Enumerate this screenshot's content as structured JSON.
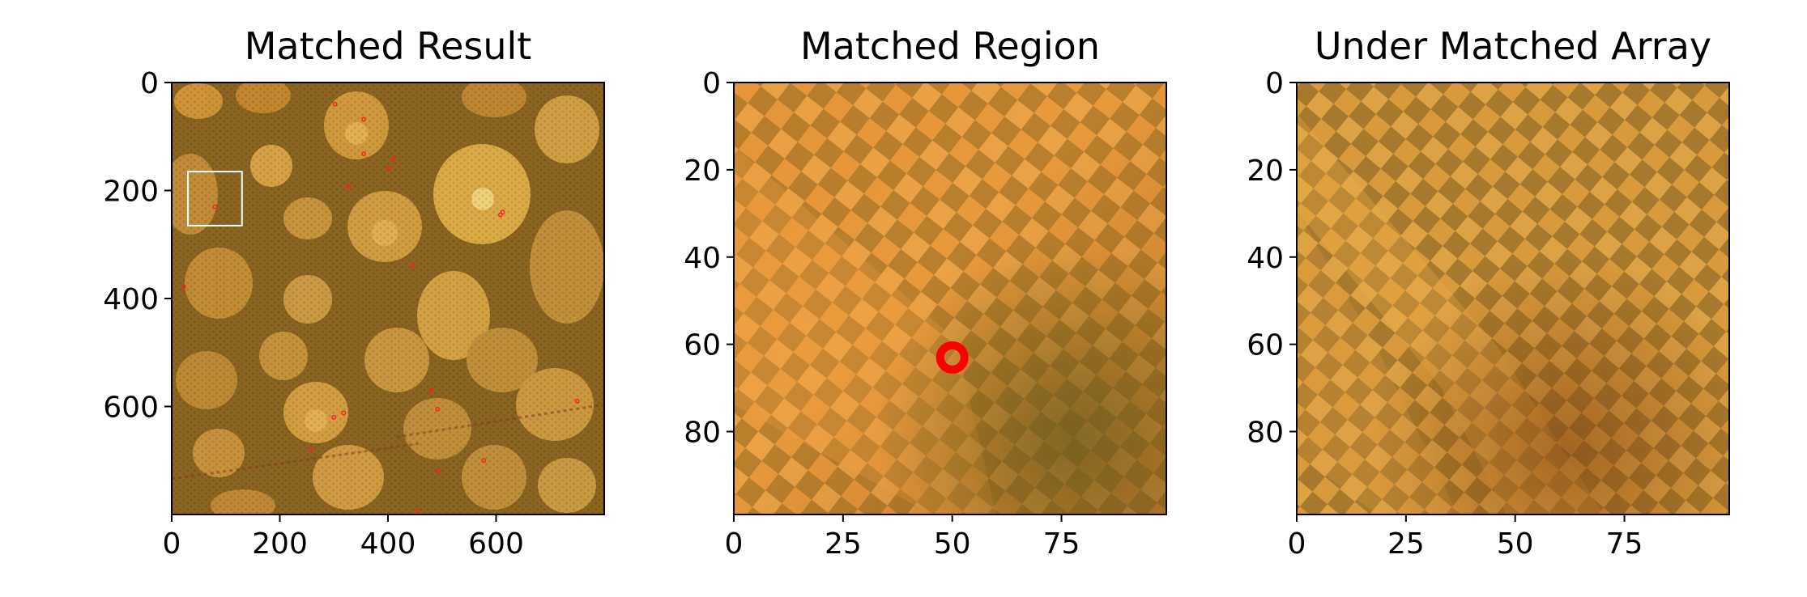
{
  "chart_data": [
    {
      "type": "heatmap",
      "title": "Matched Result",
      "xlim": [
        0,
        800
      ],
      "ylim": [
        800,
        0
      ],
      "xticks": [
        0,
        200,
        400,
        600
      ],
      "yticks": [
        0,
        200,
        400,
        600
      ],
      "xtick_labels": [
        "0",
        "200",
        "400",
        "600"
      ],
      "ytick_labels": [
        "0",
        "200",
        "400",
        "600"
      ],
      "annotations": {
        "match_box": {
          "x": [
            30,
            130
          ],
          "y": [
            165,
            265
          ],
          "color": "#ffffff"
        },
        "match_points": [
          [
            302,
            40
          ],
          [
            355,
            68
          ],
          [
            355,
            132
          ],
          [
            410,
            142
          ],
          [
            402,
            158
          ],
          [
            327,
            192
          ],
          [
            80,
            230
          ],
          [
            612,
            240
          ],
          [
            608,
            245
          ],
          [
            445,
            338
          ],
          [
            22,
            378
          ],
          [
            480,
            570
          ],
          [
            492,
            605
          ],
          [
            300,
            620
          ],
          [
            318,
            612
          ],
          [
            258,
            680
          ],
          [
            750,
            590
          ],
          [
            577,
            700
          ],
          [
            493,
            720
          ],
          [
            455,
            795
          ]
        ],
        "point_color": "#ff2020"
      }
    },
    {
      "type": "heatmap",
      "title": "Matched Region",
      "xlim": [
        0,
        99
      ],
      "ylim": [
        99,
        0
      ],
      "xticks": [
        0,
        25,
        50,
        75
      ],
      "yticks": [
        0,
        20,
        40,
        60,
        80
      ],
      "xtick_labels": [
        "0",
        "25",
        "50",
        "75"
      ],
      "ytick_labels": [
        "0",
        "20",
        "40",
        "60",
        "80"
      ],
      "annotations": {
        "match_marker": {
          "x": 50,
          "y": 63,
          "color": "#ff0000"
        }
      }
    },
    {
      "type": "heatmap",
      "title": "Under Matched Array",
      "xlim": [
        0,
        99
      ],
      "ylim": [
        99,
        0
      ],
      "xticks": [
        0,
        25,
        50,
        75
      ],
      "yticks": [
        0,
        20,
        40,
        60,
        80
      ],
      "xtick_labels": [
        "0",
        "25",
        "50",
        "75"
      ],
      "ytick_labels": [
        "0",
        "20",
        "40",
        "60",
        "80"
      ]
    }
  ]
}
